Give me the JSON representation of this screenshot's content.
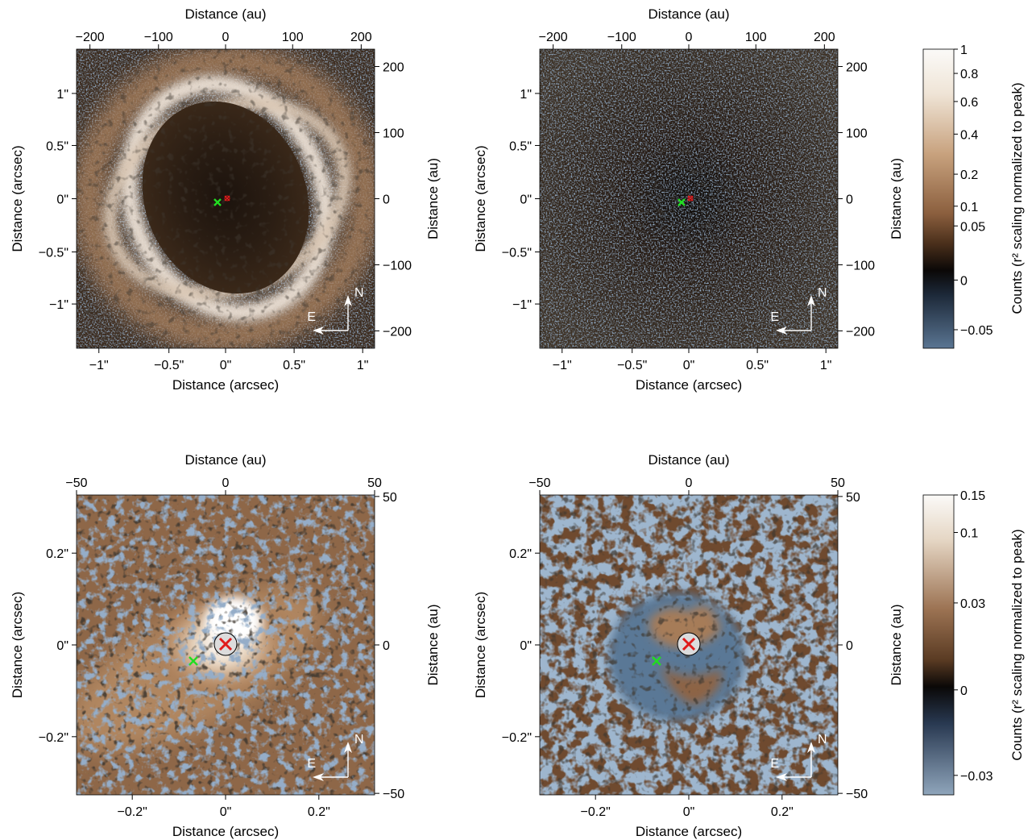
{
  "figure": {
    "axis_titles": {
      "top": "Distance (au)",
      "bottom": "Distance (arcsec)",
      "left": "Distance (arcsec)",
      "right": "Distance (au)"
    },
    "compass": {
      "north": "N",
      "east": "E"
    },
    "markers": {
      "star": "red-x-marker",
      "companion": "green-x-marker"
    }
  },
  "panels": [
    {
      "id": "top-left",
      "description_kind": "wide-field-image",
      "top_ticks": [
        "−200",
        "−100",
        "0",
        "100",
        "200"
      ],
      "bottom_ticks": [
        "−1\"",
        "−0.5\"",
        "0\"",
        "0.5\"",
        "1\""
      ],
      "left_ticks": [
        "1\"",
        "0.5\"",
        "0\"",
        "−0.5\"",
        "−1\""
      ],
      "right_ticks": [
        "200",
        "100",
        "0",
        "−100",
        "−200"
      ]
    },
    {
      "id": "top-right",
      "description_kind": "wide-field-image",
      "top_ticks": [
        "−200",
        "−100",
        "0",
        "100",
        "200"
      ],
      "bottom_ticks": [
        "−1\"",
        "−0.5\"",
        "0\"",
        "0.5\"",
        "1\""
      ],
      "left_ticks": [
        "1\"",
        "0.5\"",
        "0\"",
        "−0.5\"",
        "−1\""
      ],
      "right_ticks": [
        "200",
        "100",
        "0",
        "−100",
        "−200"
      ]
    },
    {
      "id": "bottom-left",
      "description_kind": "zoom-image",
      "top_ticks": [
        "−50",
        "0",
        "50"
      ],
      "bottom_ticks": [
        "−0.2\"",
        "0\"",
        "0.2\""
      ],
      "left_ticks": [
        "0.2\"",
        "0\"",
        "−0.2\""
      ],
      "right_ticks": [
        "50",
        "0",
        "−50"
      ]
    },
    {
      "id": "bottom-right",
      "description_kind": "zoom-image",
      "top_ticks": [
        "−50",
        "0",
        "50"
      ],
      "bottom_ticks": [
        "−0.2\"",
        "0\"",
        "0.2\""
      ],
      "left_ticks": [
        "0.2\"",
        "0\"",
        "−0.2\""
      ],
      "right_ticks": [
        "50",
        "0",
        "−50"
      ]
    }
  ],
  "colorbars": [
    {
      "id": "colorbar-top",
      "label": "Counts (r² scaling normalized to peak)",
      "ticks": [
        "1",
        "0.8",
        "0.6",
        "0.4",
        "0.2",
        "0.1",
        "0.05",
        "0",
        "−0.05"
      ]
    },
    {
      "id": "colorbar-bottom",
      "label": "Counts (r² scaling normalized to peak)",
      "ticks": [
        "0.15",
        "0.1",
        "0.03",
        "0",
        "−0.03"
      ]
    }
  ],
  "colors": {
    "bright": "#f6f1ea",
    "tan": "#9c7150",
    "brown": "#4b3120",
    "dark": "#0d0b0a",
    "blue": "#4a6687",
    "star_marker": "#e01b1b",
    "companion_marker": "#22dd22"
  }
}
